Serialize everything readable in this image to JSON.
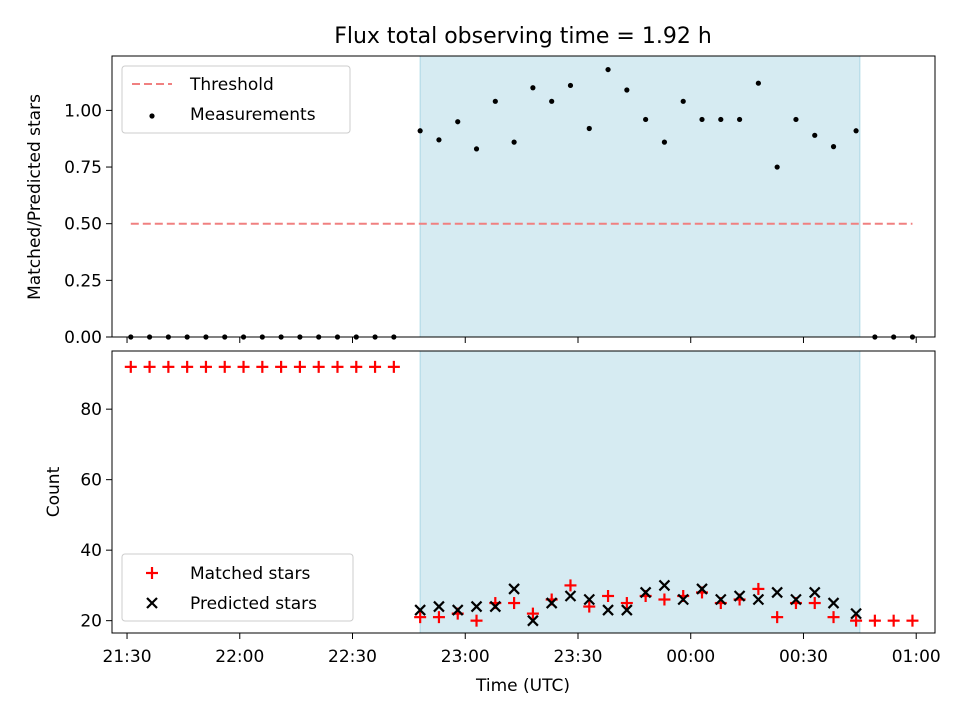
{
  "title": "Flux total observing time = 1.92 h",
  "colors": {
    "threshold": "#f08080",
    "measurement": "#000000",
    "matched": "#ff0000",
    "predicted": "#000000",
    "shade": "#add8e6"
  },
  "chart_data": [
    {
      "type": "scatter",
      "ylabel": "Matched/Predicted stars",
      "xlabel": "",
      "xlim": [
        "21:26",
        "01:05"
      ],
      "ylim": [
        0,
        1.24
      ],
      "yticks": [
        "0.00",
        "0.25",
        "0.50",
        "0.75",
        "1.00"
      ],
      "ytick_values": [
        0,
        0.25,
        0.5,
        0.75,
        1.0
      ],
      "shaded_span": [
        "22:48",
        "00:45"
      ],
      "legend": {
        "placement": "upper-left",
        "entries": [
          "Threshold",
          "Measurements"
        ]
      },
      "threshold": {
        "name": "Threshold",
        "x": [
          "21:31",
          "00:59"
        ],
        "y": 0.5
      },
      "series": [
        {
          "name": "Measurements",
          "x": [
            "21:31",
            "21:36",
            "21:41",
            "21:46",
            "21:51",
            "21:56",
            "22:01",
            "22:06",
            "22:11",
            "22:16",
            "22:21",
            "22:26",
            "22:31",
            "22:36",
            "22:41",
            "22:48",
            "22:53",
            "22:58",
            "23:03",
            "23:08",
            "23:13",
            "23:18",
            "23:23",
            "23:28",
            "23:33",
            "23:38",
            "23:43",
            "23:48",
            "23:53",
            "23:58",
            "00:03",
            "00:08",
            "00:13",
            "00:18",
            "00:23",
            "00:28",
            "00:33",
            "00:38",
            "00:44",
            "00:49",
            "00:54",
            "00:59"
          ],
          "y": [
            0,
            0,
            0,
            0,
            0,
            0,
            0,
            0,
            0,
            0,
            0,
            0,
            0,
            0,
            0,
            0.91,
            0.87,
            0.95,
            0.83,
            1.04,
            0.86,
            1.1,
            1.04,
            1.11,
            0.92,
            1.18,
            1.09,
            0.96,
            0.86,
            1.04,
            0.96,
            0.96,
            0.96,
            1.12,
            0.75,
            0.96,
            0.89,
            0.84,
            0.91,
            0,
            0,
            0
          ]
        }
      ]
    },
    {
      "type": "scatter",
      "ylabel": "Count",
      "xlabel": "Time (UTC)",
      "xlim": [
        "21:26",
        "01:05"
      ],
      "ylim": [
        16.5,
        96.5
      ],
      "yticks": [
        "20",
        "40",
        "60",
        "80"
      ],
      "ytick_values": [
        20,
        40,
        60,
        80
      ],
      "xticks": [
        "21:30",
        "22:00",
        "22:30",
        "23:00",
        "23:30",
        "00:00",
        "00:30",
        "01:00"
      ],
      "shaded_span": [
        "22:48",
        "00:45"
      ],
      "legend": {
        "placement": "lower-left",
        "entries": [
          "Matched stars",
          "Predicted stars"
        ]
      },
      "series": [
        {
          "name": "Matched stars",
          "x": [
            "21:31",
            "21:36",
            "21:41",
            "21:46",
            "21:51",
            "21:56",
            "22:01",
            "22:06",
            "22:11",
            "22:16",
            "22:21",
            "22:26",
            "22:31",
            "22:36",
            "22:41",
            "22:48",
            "22:53",
            "22:58",
            "23:03",
            "23:08",
            "23:13",
            "23:18",
            "23:23",
            "23:28",
            "23:33",
            "23:38",
            "23:43",
            "23:48",
            "23:53",
            "23:58",
            "00:03",
            "00:08",
            "00:13",
            "00:18",
            "00:23",
            "00:28",
            "00:33",
            "00:38",
            "00:44",
            "00:49",
            "00:54",
            "00:59"
          ],
          "y": [
            92,
            92,
            92,
            92,
            92,
            92,
            92,
            92,
            92,
            92,
            92,
            92,
            92,
            92,
            92,
            21,
            21,
            22,
            20,
            25,
            25,
            22,
            26,
            30,
            24,
            27,
            25,
            27,
            26,
            27,
            28,
            25,
            26,
            29,
            21,
            25,
            25,
            21,
            20,
            20,
            20,
            20
          ]
        },
        {
          "name": "Predicted stars",
          "x": [
            "22:48",
            "22:53",
            "22:58",
            "23:03",
            "23:08",
            "23:13",
            "23:18",
            "23:23",
            "23:28",
            "23:33",
            "23:38",
            "23:43",
            "23:48",
            "23:53",
            "23:58",
            "00:03",
            "00:08",
            "00:13",
            "00:18",
            "00:23",
            "00:28",
            "00:33",
            "00:38",
            "00:44"
          ],
          "y": [
            23,
            24,
            23,
            24,
            24,
            29,
            20,
            25,
            27,
            26,
            23,
            23,
            28,
            30,
            26,
            29,
            26,
            27,
            26,
            28,
            26,
            28,
            25,
            22
          ]
        }
      ]
    }
  ]
}
